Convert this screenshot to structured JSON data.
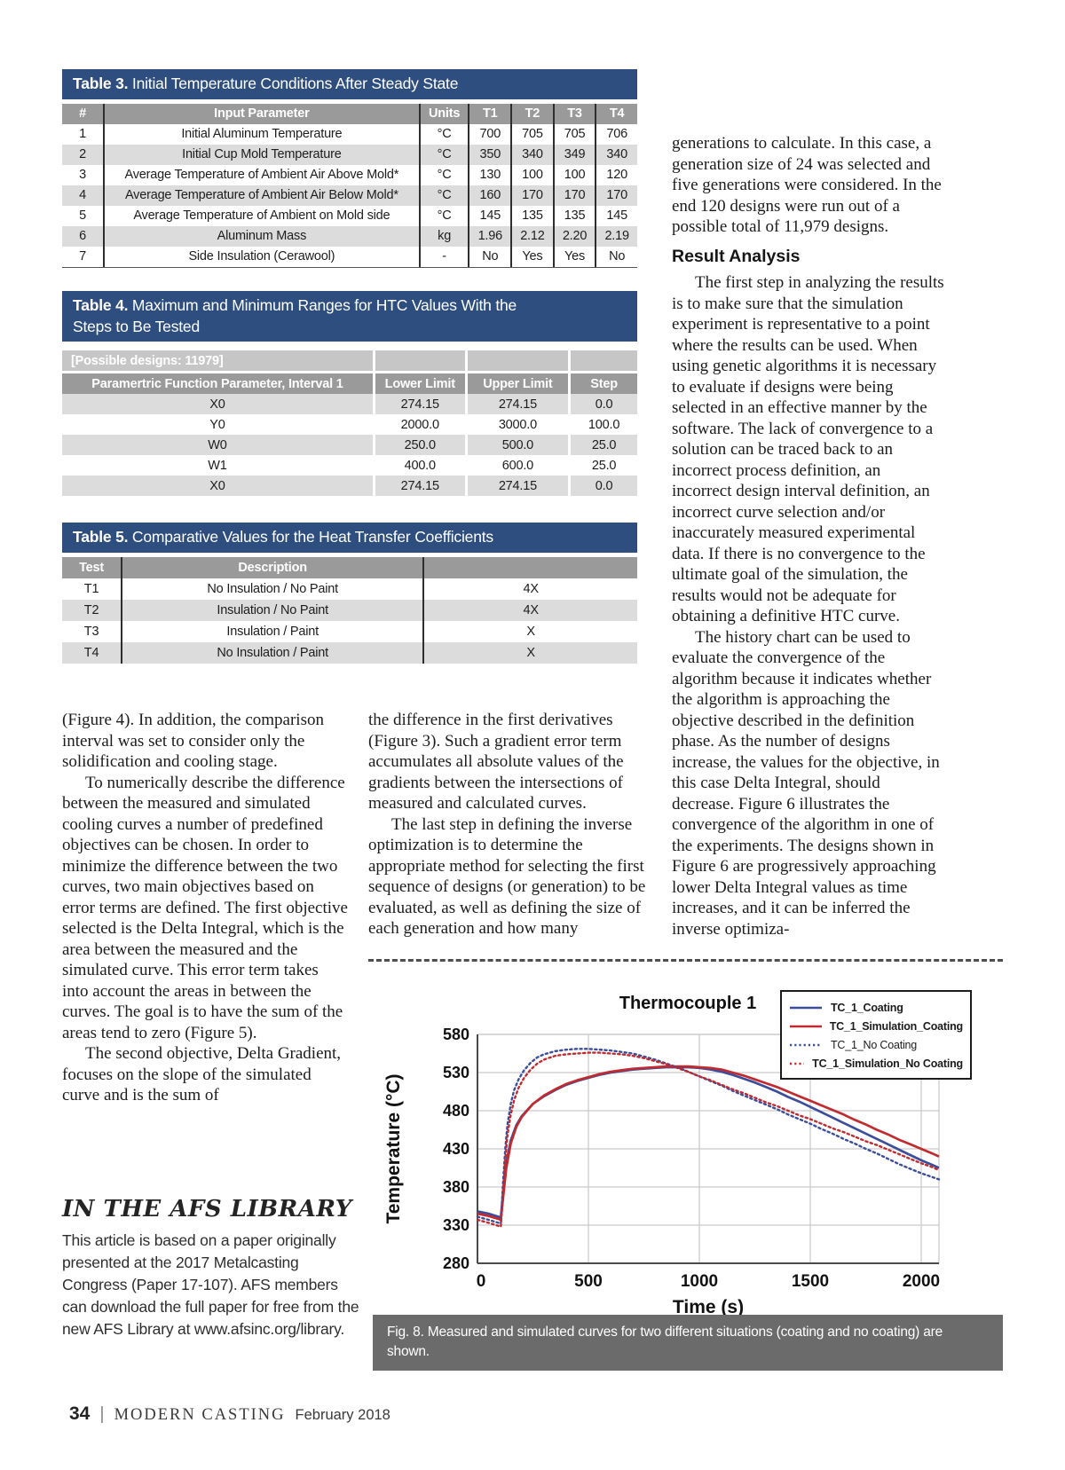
{
  "colors": {
    "table_title_bar": "#2f4e80",
    "table_header": "#9a9a9a",
    "row_alt_gray": "#dcdcdc",
    "possible_designs_row": "#c6c6c6",
    "caption_bar": "#6b6b6b",
    "series_blue": "#3b4d9b",
    "series_red": "#c12b30"
  },
  "table3": {
    "title_bold": "Table 3.",
    "title_rest": " Initial Temperature Conditions After Steady State",
    "headers": [
      "#",
      "Input Parameter",
      "Units",
      "T1",
      "T2",
      "T3",
      "T4"
    ],
    "rows": [
      [
        "1",
        "Initial Aluminum Temperature",
        "°C",
        "700",
        "705",
        "705",
        "706"
      ],
      [
        "2",
        "Initial Cup Mold Temperature",
        "°C",
        "350",
        "340",
        "349",
        "340"
      ],
      [
        "3",
        "Average Temperature of Ambient Air Above Mold*",
        "°C",
        "130",
        "100",
        "100",
        "120"
      ],
      [
        "4",
        "Average Temperature of Ambient Air Below Mold*",
        "°C",
        "160",
        "170",
        "170",
        "170"
      ],
      [
        "5",
        "Average Temperature of Ambient on Mold side",
        "°C",
        "145",
        "135",
        "135",
        "145"
      ],
      [
        "6",
        "Aluminum Mass",
        "kg",
        "1.96",
        "2.12",
        "2.20",
        "2.19"
      ],
      [
        "7",
        "Side Insulation (Cerawool)",
        "-",
        "No",
        "Yes",
        "Yes",
        "No"
      ]
    ]
  },
  "table4": {
    "title_bold": "Table 4.",
    "title_rest": " Maximum and Minimum Ranges for HTC Values With the Steps to Be Tested",
    "possible_designs": "[Possible designs: 11979]",
    "headers": [
      "Paramertric Function Parameter, Interval 1",
      "Lower Limit",
      "Upper Limit",
      "Step"
    ],
    "rows": [
      [
        "X0",
        "274.15",
        "274.15",
        "0.0"
      ],
      [
        "Y0",
        "2000.0",
        "3000.0",
        "100.0"
      ],
      [
        "W0",
        "250.0",
        "500.0",
        "25.0"
      ],
      [
        "W1",
        "400.0",
        "600.0",
        "25.0"
      ],
      [
        "X0",
        "274.15",
        "274.15",
        "0.0"
      ]
    ]
  },
  "table5": {
    "title_bold": "Table 5.",
    "title_rest": " Comparative Values for the Heat Transfer Coefficients",
    "headers": [
      "Test",
      "Description",
      ""
    ],
    "rows": [
      [
        "T1",
        "No Insulation / No Paint",
        "4X"
      ],
      [
        "T2",
        "Insulation / No Paint",
        "4X"
      ],
      [
        "T3",
        "Insulation / Paint",
        "X"
      ],
      [
        "T4",
        "No Insulation / Paint",
        "X"
      ]
    ]
  },
  "columns": {
    "left": {
      "p1": "(Figure 4). In addition, the comparison interval was set to consider only the solidification and cooling stage.",
      "p2": "To numerically describe the difference between the measured and simulated cooling curves a number of predefined objectives can be chosen. In order to minimize the difference between the two curves, two main objectives based on error terms are defined. The first objective selected is the Delta Integral, which is the area between the measured and the simulated curve. This error term takes into account the areas in between the curves. The goal is to have the sum of the areas tend to zero (Figure 5).",
      "p3": "The second objective, Delta Gradient, focuses on the slope of the simulated curve and is the sum of"
    },
    "middle": {
      "p1": "the difference in the first derivatives (Figure 3). Such a gradient error term accumulates all absolute values of the gradients between the intersections of measured and calculated curves.",
      "p2": "The last step in defining the inverse optimization is to determine the appropriate method for selecting the first sequence of designs (or generation) to be evaluated, as well as defining the size of each generation and how many"
    },
    "right": {
      "p1": "generations to calculate. In this case, a generation size of 24 was selected and five generations were considered. In the end 120 designs were run out of a possible total of 11,979 designs.",
      "heading": "Result Analysis",
      "p2": "The first step in analyzing the results is to make sure that the simulation experiment is representative to a point where the results can be used. When using genetic algorithms it is necessary to evaluate if designs were being selected in an effective manner by the software. The lack of convergence to a solution can be traced back to an incorrect process definition, an incorrect design interval definition, an incorrect curve selection and/or inaccurately measured experimental data. If there is no convergence to the ultimate goal of the simulation, the results would not be adequate for obtaining a definitive HTC curve.",
      "p3": "The history chart can be used to evaluate the convergence of the algorithm because it indicates whether the algorithm is approaching the objective described in the definition phase. As the number of designs increase, the values for the objective, in this case Delta Integral, should decrease. Figure 6 illustrates the convergence of the algorithm in one of the experiments. The designs shown in Figure 6 are progressively approaching lower Delta Integral values as time increases, and it can be inferred the inverse optimiza-"
    }
  },
  "afs": {
    "heading": "IN THE AFS LIBRARY",
    "body": "This article is based on a paper originally presented at the 2017 Metalcasting Congress (Paper 17-107). AFS members can download the full paper for free from the new AFS Library at www.afsinc.org/library."
  },
  "figure": {
    "caption": "Fig. 8. Measured and simulated curves for two different situations (coating and no coating) are shown."
  },
  "footer": {
    "page_number": "34",
    "magazine": "MODERN CASTING",
    "issue": "February 2018"
  },
  "chart_data": {
    "type": "line",
    "title": "Thermocouple 1",
    "xlabel": "Time (s)",
    "ylabel": "Temperature (°C)",
    "xlim": [
      0,
      2080
    ],
    "ylim": [
      280,
      580
    ],
    "xticks": [
      0,
      500,
      1000,
      1500,
      2000
    ],
    "yticks": [
      280,
      330,
      380,
      430,
      480,
      530,
      580
    ],
    "grid": true,
    "legend_position": "top-right",
    "series": [
      {
        "name": "TC_1_Coating",
        "color": "#3b4d9b",
        "style": "solid",
        "legend_bold": true,
        "points": [
          [
            0,
            348
          ],
          [
            50,
            345
          ],
          [
            95,
            341
          ],
          [
            105,
            340
          ],
          [
            115,
            372
          ],
          [
            130,
            412
          ],
          [
            150,
            441
          ],
          [
            175,
            461
          ],
          [
            200,
            473
          ],
          [
            250,
            489
          ],
          [
            300,
            499
          ],
          [
            350,
            507
          ],
          [
            400,
            514
          ],
          [
            450,
            519
          ],
          [
            500,
            523
          ],
          [
            550,
            527
          ],
          [
            600,
            530
          ],
          [
            650,
            532
          ],
          [
            700,
            534
          ],
          [
            750,
            535
          ],
          [
            800,
            536
          ],
          [
            850,
            537
          ],
          [
            900,
            537
          ],
          [
            950,
            537
          ],
          [
            1000,
            536
          ],
          [
            1050,
            534
          ],
          [
            1100,
            531
          ],
          [
            1150,
            527
          ],
          [
            1200,
            522
          ],
          [
            1250,
            517
          ],
          [
            1300,
            511
          ],
          [
            1350,
            505
          ],
          [
            1400,
            498
          ],
          [
            1450,
            492
          ],
          [
            1500,
            485
          ],
          [
            1550,
            478
          ],
          [
            1600,
            471
          ],
          [
            1650,
            464
          ],
          [
            1700,
            457
          ],
          [
            1750,
            450
          ],
          [
            1800,
            443
          ],
          [
            1850,
            436
          ],
          [
            1900,
            429
          ],
          [
            1950,
            422
          ],
          [
            2000,
            415
          ],
          [
            2050,
            409
          ],
          [
            2080,
            405
          ]
        ]
      },
      {
        "name": "TC_1_Simulation_Coating",
        "color": "#c12b30",
        "style": "solid",
        "legend_bold": true,
        "points": [
          [
            0,
            345
          ],
          [
            50,
            342
          ],
          [
            95,
            338
          ],
          [
            105,
            337
          ],
          [
            115,
            365
          ],
          [
            130,
            405
          ],
          [
            150,
            437
          ],
          [
            175,
            459
          ],
          [
            200,
            472
          ],
          [
            250,
            489
          ],
          [
            300,
            500
          ],
          [
            350,
            508
          ],
          [
            400,
            515
          ],
          [
            450,
            520
          ],
          [
            500,
            524
          ],
          [
            550,
            528
          ],
          [
            600,
            531
          ],
          [
            650,
            533
          ],
          [
            700,
            535
          ],
          [
            750,
            536
          ],
          [
            800,
            537
          ],
          [
            850,
            538
          ],
          [
            900,
            538
          ],
          [
            950,
            538
          ],
          [
            1000,
            537
          ],
          [
            1050,
            536
          ],
          [
            1100,
            534
          ],
          [
            1150,
            530
          ],
          [
            1200,
            526
          ],
          [
            1250,
            521
          ],
          [
            1300,
            516
          ],
          [
            1350,
            511
          ],
          [
            1400,
            505
          ],
          [
            1450,
            499
          ],
          [
            1500,
            493
          ],
          [
            1550,
            487
          ],
          [
            1600,
            481
          ],
          [
            1650,
            475
          ],
          [
            1700,
            468
          ],
          [
            1750,
            462
          ],
          [
            1800,
            455
          ],
          [
            1850,
            449
          ],
          [
            1900,
            442
          ],
          [
            1950,
            436
          ],
          [
            2000,
            430
          ],
          [
            2050,
            424
          ],
          [
            2080,
            420
          ]
        ]
      },
      {
        "name": "TC_1_No Coating",
        "color": "#3b4d9b",
        "style": "dotted",
        "legend_bold": false,
        "points": [
          [
            0,
            341
          ],
          [
            50,
            337
          ],
          [
            95,
            333
          ],
          [
            105,
            332
          ],
          [
            115,
            385
          ],
          [
            125,
            430
          ],
          [
            135,
            462
          ],
          [
            150,
            489
          ],
          [
            165,
            507
          ],
          [
            185,
            521
          ],
          [
            210,
            533
          ],
          [
            240,
            543
          ],
          [
            270,
            550
          ],
          [
            300,
            554
          ],
          [
            350,
            558
          ],
          [
            400,
            560
          ],
          [
            450,
            561
          ],
          [
            500,
            561
          ],
          [
            550,
            560
          ],
          [
            600,
            559
          ],
          [
            650,
            557
          ],
          [
            700,
            555
          ],
          [
            750,
            551
          ],
          [
            800,
            547
          ],
          [
            850,
            542
          ],
          [
            900,
            537
          ],
          [
            950,
            531
          ],
          [
            1000,
            525
          ],
          [
            1050,
            519
          ],
          [
            1100,
            513
          ],
          [
            1150,
            506
          ],
          [
            1200,
            500
          ],
          [
            1250,
            494
          ],
          [
            1300,
            488
          ],
          [
            1350,
            482
          ],
          [
            1400,
            475
          ],
          [
            1450,
            469
          ],
          [
            1500,
            463
          ],
          [
            1550,
            456
          ],
          [
            1600,
            450
          ],
          [
            1650,
            443
          ],
          [
            1700,
            437
          ],
          [
            1750,
            430
          ],
          [
            1800,
            424
          ],
          [
            1850,
            417
          ],
          [
            1900,
            410
          ],
          [
            1950,
            404
          ],
          [
            2000,
            398
          ],
          [
            2050,
            393
          ],
          [
            2080,
            390
          ]
        ]
      },
      {
        "name": "TC_1_Simulation_No Coating",
        "color": "#c12b30",
        "style": "dotted",
        "legend_bold": true,
        "points": [
          [
            0,
            337
          ],
          [
            50,
            333
          ],
          [
            95,
            329
          ],
          [
            105,
            328
          ],
          [
            115,
            372
          ],
          [
            125,
            415
          ],
          [
            135,
            448
          ],
          [
            150,
            475
          ],
          [
            165,
            494
          ],
          [
            185,
            510
          ],
          [
            210,
            523
          ],
          [
            240,
            534
          ],
          [
            270,
            542
          ],
          [
            300,
            547
          ],
          [
            350,
            552
          ],
          [
            400,
            554
          ],
          [
            450,
            555
          ],
          [
            500,
            556
          ],
          [
            550,
            556
          ],
          [
            600,
            555
          ],
          [
            650,
            554
          ],
          [
            700,
            552
          ],
          [
            750,
            549
          ],
          [
            800,
            545
          ],
          [
            850,
            541
          ],
          [
            900,
            536
          ],
          [
            950,
            531
          ],
          [
            1000,
            525
          ],
          [
            1050,
            520
          ],
          [
            1100,
            514
          ],
          [
            1150,
            508
          ],
          [
            1200,
            503
          ],
          [
            1250,
            497
          ],
          [
            1300,
            491
          ],
          [
            1350,
            486
          ],
          [
            1400,
            480
          ],
          [
            1450,
            474
          ],
          [
            1500,
            469
          ],
          [
            1550,
            463
          ],
          [
            1600,
            457
          ],
          [
            1650,
            452
          ],
          [
            1700,
            446
          ],
          [
            1750,
            440
          ],
          [
            1800,
            435
          ],
          [
            1850,
            429
          ],
          [
            1900,
            423
          ],
          [
            1950,
            417
          ],
          [
            2000,
            411
          ],
          [
            2050,
            406
          ],
          [
            2080,
            402
          ]
        ]
      }
    ]
  }
}
